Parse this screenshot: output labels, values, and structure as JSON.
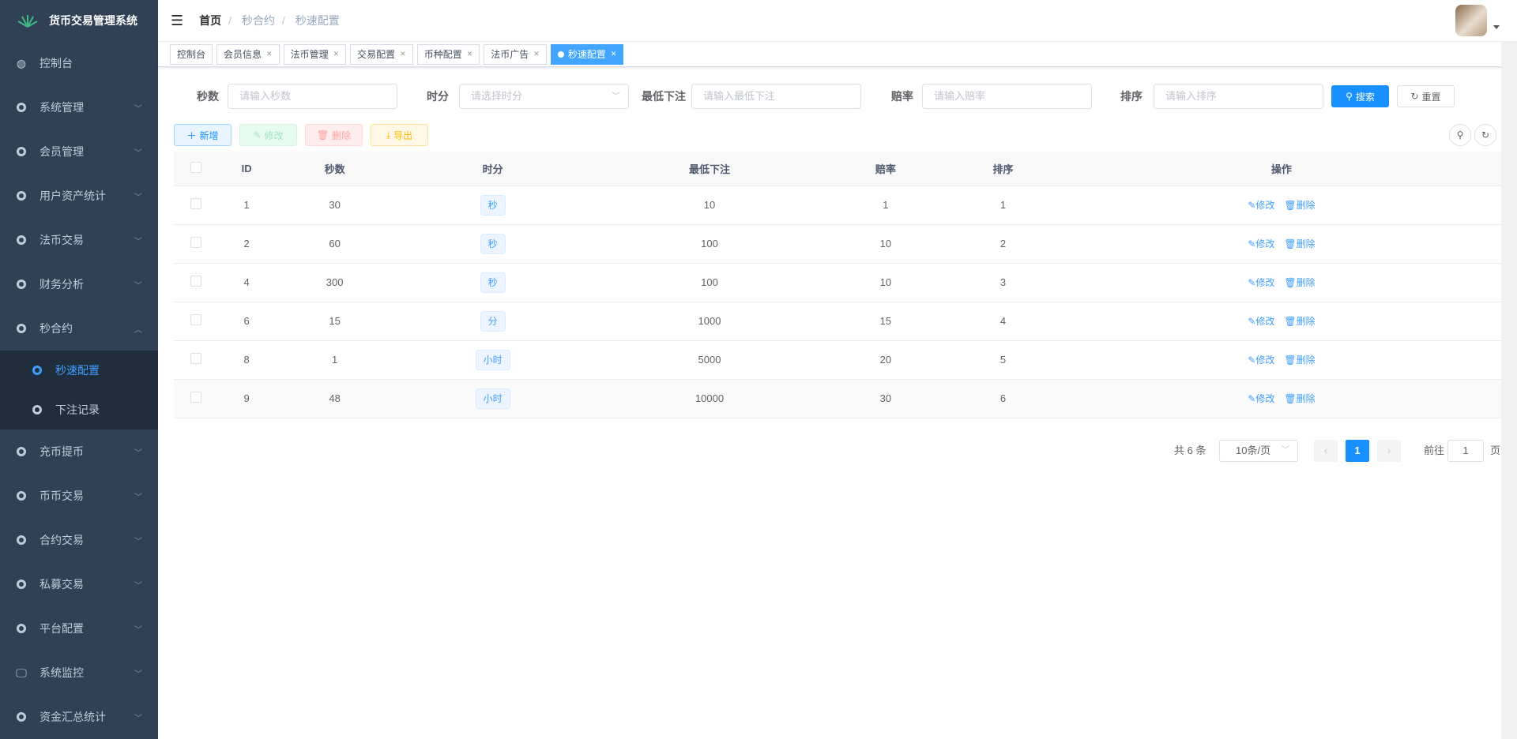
{
  "app": {
    "title": "货币交易管理系统"
  },
  "colors": {
    "sidebar": "#304156",
    "accent": "#409eff",
    "primary_button": "#1890ff"
  },
  "sidebar": {
    "items": [
      {
        "label": "控制台",
        "icon": "dashboard-icon"
      },
      {
        "label": "系统管理",
        "icon": "gear-icon",
        "arrow": "chevron-down"
      },
      {
        "label": "会员管理",
        "icon": "gear-icon",
        "arrow": "chevron-down"
      },
      {
        "label": "用户资产统计",
        "icon": "gear-icon",
        "arrow": "chevron-down"
      },
      {
        "label": "法币交易",
        "icon": "gear-icon",
        "arrow": "chevron-down"
      },
      {
        "label": "财务分析",
        "icon": "gear-icon",
        "arrow": "chevron-down"
      },
      {
        "label": "秒合约",
        "icon": "gear-icon",
        "arrow": "chevron-up",
        "children": [
          {
            "label": "秒速配置",
            "active": true
          },
          {
            "label": "下注记录"
          }
        ]
      },
      {
        "label": "充币提币",
        "icon": "gear-icon",
        "arrow": "chevron-down"
      },
      {
        "label": "币币交易",
        "icon": "gear-icon",
        "arrow": "chevron-down"
      },
      {
        "label": "合约交易",
        "icon": "gear-icon",
        "arrow": "chevron-down"
      },
      {
        "label": "私募交易",
        "icon": "gear-icon",
        "arrow": "chevron-down"
      },
      {
        "label": "平台配置",
        "icon": "gear-icon",
        "arrow": "chevron-down"
      },
      {
        "label": "系统监控",
        "icon": "monitor-icon",
        "arrow": "chevron-down"
      },
      {
        "label": "资金汇总统计",
        "icon": "gear-icon",
        "arrow": "chevron-down"
      }
    ]
  },
  "breadcrumb": [
    "首页",
    "秒合约",
    "秒速配置"
  ],
  "tags": [
    {
      "label": "控制台",
      "closable": false
    },
    {
      "label": "会员信息",
      "closable": true
    },
    {
      "label": "法币管理",
      "closable": true
    },
    {
      "label": "交易配置",
      "closable": true
    },
    {
      "label": "币种配置",
      "closable": true
    },
    {
      "label": "法币广告",
      "closable": true
    },
    {
      "label": "秒速配置",
      "closable": true,
      "active": true
    }
  ],
  "search": {
    "fields": [
      {
        "label": "秒数",
        "placeholder": "请输入秒数"
      },
      {
        "label": "时分",
        "placeholder": "请选择时分",
        "type": "select"
      },
      {
        "label": "最低下注",
        "placeholder": "请输入最低下注"
      },
      {
        "label": "赔率",
        "placeholder": "请输入赔率"
      },
      {
        "label": "排序",
        "placeholder": "请输入排序"
      }
    ],
    "search_label": "搜索",
    "reset_label": "重置"
  },
  "toolbar": {
    "add": "新增",
    "edit": "修改",
    "delete": "删除",
    "export": "导出"
  },
  "table": {
    "columns": [
      "ID",
      "秒数",
      "时分",
      "最低下注",
      "赔率",
      "排序",
      "操作"
    ],
    "rows": [
      {
        "id": "1",
        "seconds": "30",
        "unit": "秒",
        "min_bet": "10",
        "odds": "1",
        "sort": "1"
      },
      {
        "id": "2",
        "seconds": "60",
        "unit": "秒",
        "min_bet": "100",
        "odds": "10",
        "sort": "2"
      },
      {
        "id": "4",
        "seconds": "300",
        "unit": "秒",
        "min_bet": "100",
        "odds": "10",
        "sort": "3"
      },
      {
        "id": "6",
        "seconds": "15",
        "unit": "分",
        "min_bet": "1000",
        "odds": "15",
        "sort": "4"
      },
      {
        "id": "8",
        "seconds": "1",
        "unit": "小时",
        "min_bet": "5000",
        "odds": "20",
        "sort": "5"
      },
      {
        "id": "9",
        "seconds": "48",
        "unit": "小时",
        "min_bet": "10000",
        "odds": "30",
        "sort": "6"
      }
    ],
    "edit_label": "修改",
    "delete_label": "删除"
  },
  "pagination": {
    "total": "共 6 条",
    "page_size": "10条/页",
    "current": "1",
    "goto_label": "前往",
    "goto_value": "1",
    "page_suffix": "页"
  }
}
